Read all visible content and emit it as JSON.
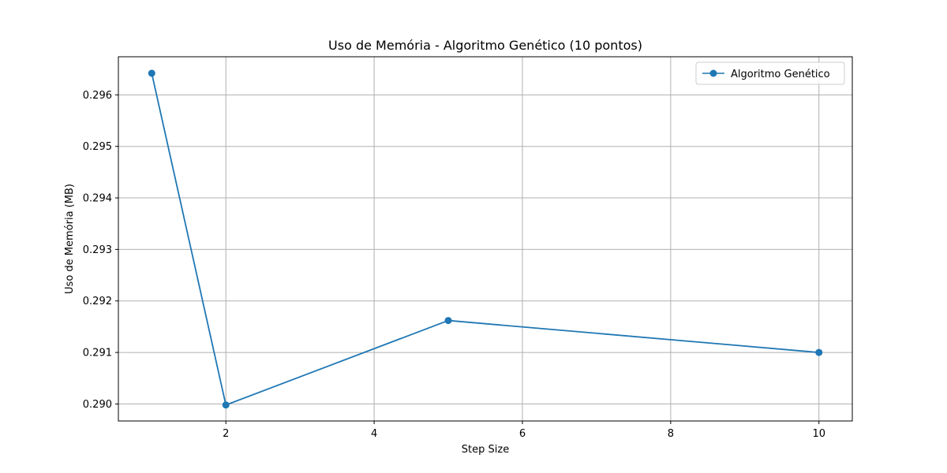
{
  "chart_data": {
    "type": "line",
    "title": "Uso de Memória - Algoritmo Genético (10 pontos)",
    "xlabel": "Step Size",
    "ylabel": "Uso de Memória (MB)",
    "xlim": [
      0.55,
      10.45
    ],
    "ylim": [
      0.28967,
      0.29674
    ],
    "xticks": [
      2,
      4,
      6,
      8,
      10
    ],
    "xtick_labels": [
      "2",
      "4",
      "6",
      "8",
      "10"
    ],
    "yticks": [
      0.29,
      0.291,
      0.292,
      0.293,
      0.294,
      0.295,
      0.296
    ],
    "ytick_labels": [
      "0.290",
      "0.291",
      "0.292",
      "0.293",
      "0.294",
      "0.295",
      "0.296"
    ],
    "grid": true,
    "legend_position": "top-right",
    "series": [
      {
        "name": "Algoritmo Genético",
        "color": "#1f77b4",
        "marker": "circle",
        "x": [
          1,
          2,
          5,
          10
        ],
        "y": [
          0.29642,
          0.28998,
          0.29162,
          0.291
        ]
      }
    ]
  }
}
